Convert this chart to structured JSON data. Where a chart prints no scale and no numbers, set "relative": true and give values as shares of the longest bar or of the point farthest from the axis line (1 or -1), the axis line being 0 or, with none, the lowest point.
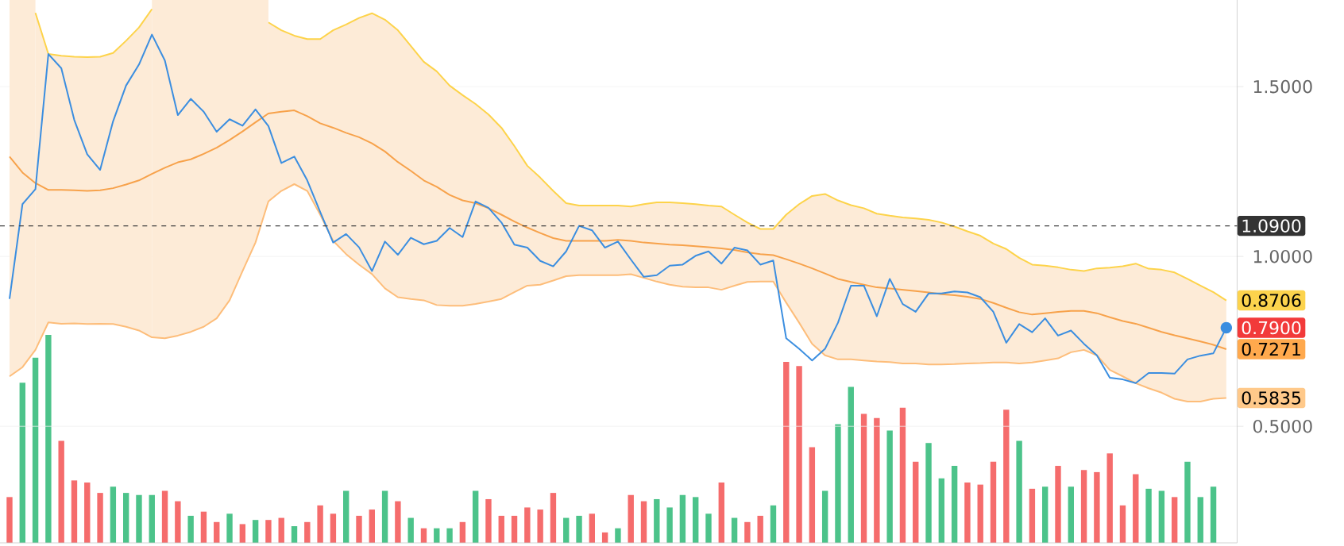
{
  "chart_data": [
    {
      "type": "line",
      "categories": [
        null,
        null,
        null,
        null,
        null,
        null,
        null,
        null,
        null,
        null,
        null,
        null,
        null,
        null,
        null,
        null,
        null,
        null,
        null,
        null,
        null,
        null,
        null,
        null,
        null,
        null,
        null,
        null,
        null,
        null,
        null,
        null,
        null,
        null,
        null,
        null,
        null,
        null,
        null,
        null,
        null,
        null,
        null,
        null,
        null,
        null,
        null,
        null,
        null,
        null,
        null,
        null,
        null,
        null,
        null,
        null,
        null,
        null,
        null,
        null,
        null,
        null,
        null,
        null,
        null,
        null,
        null,
        null,
        null,
        null,
        null,
        null,
        null,
        null,
        null,
        null,
        null,
        null,
        null,
        null,
        null,
        null,
        null,
        null,
        null,
        null,
        null,
        null,
        null,
        null,
        null,
        null,
        null,
        null,
        null
      ],
      "series": [
        {
          "color": "#fdd34a",
          "values": [
            null,
            null,
            1.717,
            1.596,
            1.591,
            1.588,
            1.587,
            1.588,
            1.599,
            1.635,
            1.674,
            1.728,
            null,
            null,
            null,
            null,
            null,
            null,
            null,
            null,
            1.689,
            1.666,
            1.65,
            1.64,
            1.64,
            1.666,
            1.683,
            1.702,
            1.716,
            1.697,
            1.666,
            1.62,
            1.573,
            1.545,
            1.503,
            1.475,
            1.449,
            1.418,
            1.379,
            1.325,
            1.267,
            1.232,
            1.193,
            1.157,
            1.15,
            1.15,
            1.15,
            1.15,
            1.147,
            1.154,
            1.159,
            1.159,
            1.157,
            1.154,
            1.15,
            1.147,
            1.123,
            1.1,
            1.081,
            1.081,
            1.123,
            1.154,
            1.178,
            1.184,
            1.165,
            1.151,
            1.142,
            1.126,
            1.12,
            1.115,
            1.112,
            1.108,
            1.1,
            1.088,
            1.074,
            1.061,
            1.038,
            1.022,
            0.996,
            0.976,
            0.973,
            0.968,
            0.961,
            0.957,
            0.965,
            0.967,
            0.971,
            0.979,
            0.964,
            0.961,
            0.953,
            0.934,
            0.914,
            0.895,
            0.8706
          ],
          "value_labels": [
            null,
            null,
            null,
            null,
            null,
            null,
            null,
            null,
            null,
            null,
            null,
            null,
            null,
            null,
            null,
            null,
            null,
            null,
            null,
            null,
            null,
            null,
            null,
            null,
            null,
            null,
            null,
            null,
            null,
            null,
            null,
            null,
            null,
            null,
            null,
            null,
            null,
            null,
            null,
            null,
            null,
            null,
            null,
            null,
            null,
            null,
            null,
            null,
            null,
            null,
            null,
            null,
            null,
            null,
            null,
            null,
            null,
            null,
            null,
            null,
            null,
            null,
            null,
            null,
            null,
            null,
            null,
            null,
            null,
            null,
            null,
            null,
            null,
            null,
            null,
            null,
            null,
            null,
            null,
            null,
            null,
            null,
            null,
            null,
            null,
            null,
            null,
            null,
            null,
            null,
            null,
            null,
            null,
            null,
            "0.8706"
          ]
        },
        {
          "color": "#f7a24b",
          "upper": [
            null,
            null,
            1.717,
            1.596,
            1.591,
            1.588,
            1.587,
            1.588,
            1.599,
            1.635,
            1.674,
            1.728,
            null,
            null,
            null,
            null,
            null,
            null,
            null,
            null,
            1.689,
            1.666,
            1.65,
            1.64,
            1.64,
            1.666,
            1.683,
            1.702,
            1.716,
            1.697,
            1.666,
            1.62,
            1.573,
            1.545,
            1.503,
            1.475,
            1.449,
            1.418,
            1.379,
            1.325,
            1.267,
            1.232,
            1.193,
            1.157,
            1.15,
            1.15,
            1.15,
            1.15,
            1.147,
            1.154,
            1.159,
            1.159,
            1.157,
            1.154,
            1.15,
            1.147,
            1.123,
            1.1,
            1.081,
            1.081,
            1.123,
            1.154,
            1.178,
            1.184,
            1.165,
            1.151,
            1.142,
            1.126,
            1.12,
            1.115,
            1.112,
            1.108,
            1.1,
            1.088,
            1.074,
            1.061,
            1.038,
            1.022,
            0.996,
            0.976,
            0.973,
            0.968,
            0.961,
            0.957,
            0.965,
            0.967,
            0.971,
            0.979,
            0.964,
            0.961,
            0.953,
            0.934,
            0.914,
            0.895,
            0.8706
          ],
          "lower": [
            null,
            null,
            0.725,
            0.806,
            0.802,
            0.803,
            0.801,
            0.802,
            0.801,
            0.793,
            0.782,
            0.762,
            null,
            null,
            null,
            null,
            null,
            null,
            null,
            null,
            1.162,
            1.193,
            1.213,
            1.193,
            1.123,
            1.046,
            1.007,
            0.976,
            0.948,
            0.906,
            0.88,
            0.875,
            0.871,
            0.857,
            0.855,
            0.855,
            0.86,
            0.867,
            0.875,
            0.895,
            0.914,
            0.917,
            0.929,
            0.942,
            0.945,
            0.945,
            0.945,
            0.945,
            0.948,
            0.937,
            0.926,
            0.917,
            0.911,
            0.909,
            0.909,
            0.902,
            0.914,
            0.925,
            0.926,
            0.926,
            0.864,
            0.805,
            0.743,
            0.709,
            0.697,
            0.697,
            0.694,
            0.691,
            0.689,
            0.685,
            0.685,
            0.682,
            0.682,
            0.683,
            0.685,
            0.686,
            0.688,
            0.688,
            0.685,
            0.688,
            0.694,
            0.7,
            0.718,
            0.725,
            0.709,
            0.666,
            0.647,
            0.627,
            0.612,
            0.599,
            0.581,
            0.573,
            0.573,
            0.581,
            0.5835
          ],
          "values": [
            1.294,
            1.247,
            1.216,
            1.196,
            1.196,
            1.195,
            1.193,
            1.195,
            1.201,
            1.212,
            1.224,
            1.243,
            1.261,
            1.277,
            1.286,
            1.302,
            1.32,
            1.343,
            1.368,
            1.395,
            1.421,
            1.426,
            1.43,
            1.413,
            1.392,
            1.379,
            1.364,
            1.351,
            1.333,
            1.309,
            1.278,
            1.252,
            1.224,
            1.205,
            1.181,
            1.165,
            1.157,
            1.142,
            1.123,
            1.103,
            1.085,
            1.069,
            1.054,
            1.046,
            1.046,
            1.046,
            1.046,
            1.049,
            1.046,
            1.041,
            1.038,
            1.035,
            1.033,
            1.03,
            1.027,
            1.024,
            1.019,
            1.012,
            1.007,
            1.004,
            0.992,
            0.979,
            0.965,
            0.95,
            0.934,
            0.925,
            0.917,
            0.909,
            0.906,
            0.902,
            0.898,
            0.894,
            0.889,
            0.886,
            0.881,
            0.875,
            0.863,
            0.849,
            0.836,
            0.829,
            0.833,
            0.837,
            0.84,
            0.84,
            0.833,
            0.821,
            0.81,
            0.802,
            0.79,
            0.778,
            0.768,
            0.759,
            0.75,
            0.74,
            0.7271
          ],
          "value_labels": [
            null,
            null,
            null,
            null,
            null,
            null,
            null,
            null,
            null,
            null,
            null,
            null,
            null,
            null,
            null,
            null,
            null,
            null,
            null,
            null,
            null,
            null,
            null,
            null,
            null,
            null,
            null,
            null,
            null,
            null,
            null,
            null,
            null,
            null,
            null,
            null,
            null,
            null,
            null,
            null,
            null,
            null,
            null,
            null,
            null,
            null,
            null,
            null,
            null,
            null,
            null,
            null,
            null,
            null,
            null,
            null,
            null,
            null,
            null,
            null,
            null,
            null,
            null,
            null,
            null,
            null,
            null,
            null,
            null,
            null,
            null,
            null,
            null,
            null,
            null,
            null,
            null,
            null,
            null,
            null,
            null,
            null,
            null,
            null,
            null,
            null,
            null,
            null,
            null,
            null,
            null,
            null,
            null,
            null,
            "0.7271"
          ]
        },
        {
          "color": "#fdbd7a",
          "values": [
            0.647,
            0.674,
            0.725,
            0.806,
            0.802,
            0.803,
            0.801,
            0.802,
            0.801,
            0.793,
            0.782,
            0.762,
            0.759,
            0.767,
            0.778,
            0.793,
            0.818,
            0.871,
            0.957,
            1.041,
            1.162,
            1.193,
            1.213,
            1.193,
            1.123,
            1.046,
            1.007,
            0.976,
            0.948,
            0.906,
            0.88,
            0.875,
            0.871,
            0.857,
            0.855,
            0.855,
            0.86,
            0.867,
            0.875,
            0.895,
            0.914,
            0.917,
            0.929,
            0.942,
            0.945,
            0.945,
            0.945,
            0.945,
            0.948,
            0.937,
            0.926,
            0.917,
            0.911,
            0.909,
            0.909,
            0.902,
            0.914,
            0.925,
            0.926,
            0.926,
            0.864,
            0.805,
            0.743,
            0.709,
            0.697,
            0.697,
            0.694,
            0.691,
            0.689,
            0.685,
            0.685,
            0.682,
            0.682,
            0.683,
            0.685,
            0.686,
            0.688,
            0.688,
            0.685,
            0.688,
            0.694,
            0.7,
            0.718,
            0.725,
            0.709,
            0.666,
            0.647,
            0.627,
            0.612,
            0.599,
            0.581,
            0.573,
            0.573,
            0.581,
            0.5835
          ],
          "value_labels": [
            null,
            null,
            null,
            null,
            null,
            null,
            null,
            null,
            null,
            null,
            null,
            null,
            null,
            null,
            null,
            null,
            null,
            null,
            null,
            null,
            null,
            null,
            null,
            null,
            null,
            null,
            null,
            null,
            null,
            null,
            null,
            null,
            null,
            null,
            null,
            null,
            null,
            null,
            null,
            null,
            null,
            null,
            null,
            null,
            null,
            null,
            null,
            null,
            null,
            null,
            null,
            null,
            null,
            null,
            null,
            null,
            null,
            null,
            null,
            null,
            null,
            null,
            null,
            null,
            null,
            null,
            null,
            null,
            null,
            null,
            null,
            null,
            null,
            null,
            null,
            null,
            null,
            null,
            null,
            null,
            null,
            null,
            null,
            null,
            null,
            null,
            null,
            null,
            null,
            null,
            null,
            null,
            null,
            null,
            "0.5835"
          ]
        },
        {
          "color": "#3b8ee0",
          "values": [
            0.875,
            1.154,
            1.198,
            1.596,
            1.554,
            1.402,
            1.301,
            1.255,
            1.398,
            1.503,
            1.565,
            1.653,
            1.577,
            1.416,
            1.464,
            1.426,
            1.367,
            1.404,
            1.385,
            1.433,
            1.384,
            1.275,
            1.294,
            1.224,
            1.131,
            1.041,
            1.066,
            1.027,
            0.957,
            1.044,
            1.005,
            1.055,
            1.036,
            1.046,
            1.084,
            1.057,
            1.162,
            1.143,
            1.1,
            1.035,
            1.026,
            0.987,
            0.971,
            1.015,
            1.09,
            1.077,
            1.026,
            1.044,
            0.991,
            0.94,
            0.945,
            0.973,
            0.976,
            1.002,
            1.015,
            0.979,
            1.026,
            1.018,
            0.976,
            0.988,
            0.759,
            0.728,
            0.694,
            0.728,
            0.805,
            0.914,
            0.914,
            0.824,
            0.934,
            0.86,
            0.837,
            0.891,
            0.891,
            0.897,
            0.894,
            0.88,
            0.837,
            0.746,
            0.801,
            0.777,
            0.818,
            0.767,
            0.782,
            0.743,
            0.709,
            0.643,
            0.638,
            0.627,
            0.657,
            0.657,
            0.655,
            0.697,
            0.708,
            0.715,
            0.79
          ],
          "value_labels": [
            null,
            null,
            null,
            null,
            null,
            null,
            null,
            null,
            null,
            null,
            null,
            null,
            null,
            null,
            null,
            null,
            null,
            null,
            null,
            null,
            null,
            null,
            null,
            null,
            null,
            null,
            null,
            null,
            null,
            null,
            null,
            null,
            null,
            null,
            null,
            null,
            null,
            null,
            null,
            null,
            null,
            null,
            null,
            null,
            null,
            null,
            null,
            null,
            null,
            null,
            null,
            null,
            null,
            null,
            null,
            null,
            null,
            null,
            null,
            null,
            null,
            null,
            null,
            null,
            null,
            null,
            null,
            null,
            null,
            null,
            null,
            null,
            null,
            null,
            null,
            null,
            null,
            null,
            null,
            null,
            null,
            null,
            null,
            null,
            null,
            null,
            null,
            null,
            null,
            null,
            null,
            null,
            null,
            null,
            "0.7900"
          ]
        }
      ],
      "ylim": [
        0.157,
        1.755
      ],
      "yticks": [
        {
          "value": 0.5,
          "label": "0.5000"
        },
        {
          "value": 1.0,
          "label": "1.0000"
        },
        {
          "value": 1.5,
          "label": "1.5000"
        }
      ],
      "grid": "y",
      "tick_labels": "y",
      "ref_lines": [
        {
          "axis": "y",
          "value": 1.09,
          "label": "1.0900",
          "line_style": "dashed"
        }
      ]
    },
    {
      "type": "bar",
      "relative": true,
      "tick_labels": false,
      "categories": [
        null,
        null,
        null,
        null,
        null,
        null,
        null,
        null,
        null,
        null,
        null,
        null,
        null,
        null,
        null,
        null,
        null,
        null,
        null,
        null,
        null,
        null,
        null,
        null,
        null,
        null,
        null,
        null,
        null,
        null,
        null,
        null,
        null,
        null,
        null,
        null,
        null,
        null,
        null,
        null,
        null,
        null,
        null,
        null,
        null,
        null,
        null,
        null,
        null,
        null,
        null,
        null,
        null,
        null,
        null,
        null,
        null,
        null,
        null,
        null,
        null,
        null,
        null,
        null,
        null,
        null,
        null,
        null,
        null,
        null,
        null,
        null,
        null,
        null,
        null,
        null,
        null,
        null,
        null,
        null,
        null,
        null,
        null,
        null,
        null,
        null,
        null,
        null,
        null,
        null,
        null,
        null,
        null,
        null,
        null
      ],
      "values": [
        0.22,
        0.77,
        0.89,
        1,
        0.49,
        0.3,
        0.29,
        0.24,
        0.27,
        0.24,
        0.23,
        0.23,
        0.25,
        0.2,
        0.13,
        0.15,
        0.1,
        0.14,
        0.09,
        0.11,
        0.11,
        0.12,
        0.08,
        0.1,
        0.18,
        0.14,
        0.25,
        0.13,
        0.16,
        0.25,
        0.2,
        0.12,
        0.07,
        0.07,
        0.07,
        0.1,
        0.25,
        0.21,
        0.13,
        0.13,
        0.17,
        0.16,
        0.24,
        0.12,
        0.13,
        0.14,
        0.05,
        0.07,
        0.23,
        0.2,
        0.21,
        0.17,
        0.23,
        0.22,
        0.14,
        0.29,
        0.12,
        0.1,
        0.13,
        0.18,
        0.87,
        0.85,
        0.46,
        0.25,
        0.57,
        0.75,
        0.62,
        0.6,
        0.54,
        0.65,
        0.39,
        0.48,
        0.31,
        0.37,
        0.29,
        0.28,
        0.39,
        0.64,
        0.49,
        0.26,
        0.27,
        0.37,
        0.27,
        0.35,
        0.34,
        0.43,
        0.18,
        0.33,
        0.26,
        0.25,
        0.22,
        0.39,
        0.22,
        0.27,
        null
      ],
      "colors": [
        "#f56c6c",
        "#4cc38a",
        "#4cc38a",
        "#4cc38a",
        "#f56c6c",
        "#f56c6c",
        "#f56c6c",
        "#f56c6c",
        "#4cc38a",
        "#4cc38a",
        "#4cc38a",
        "#4cc38a",
        "#f56c6c",
        "#f56c6c",
        "#4cc38a",
        "#f56c6c",
        "#f56c6c",
        "#4cc38a",
        "#f56c6c",
        "#4cc38a",
        "#f56c6c",
        "#f56c6c",
        "#4cc38a",
        "#f56c6c",
        "#f56c6c",
        "#f56c6c",
        "#4cc38a",
        "#f56c6c",
        "#f56c6c",
        "#4cc38a",
        "#f56c6c",
        "#4cc38a",
        "#f56c6c",
        "#4cc38a",
        "#4cc38a",
        "#f56c6c",
        "#4cc38a",
        "#f56c6c",
        "#f56c6c",
        "#f56c6c",
        "#f56c6c",
        "#f56c6c",
        "#f56c6c",
        "#4cc38a",
        "#4cc38a",
        "#f56c6c",
        "#f56c6c",
        "#4cc38a",
        "#f56c6c",
        "#f56c6c",
        "#4cc38a",
        "#4cc38a",
        "#4cc38a",
        "#4cc38a",
        "#4cc38a",
        "#f56c6c",
        "#4cc38a",
        "#f56c6c",
        "#f56c6c",
        "#4cc38a",
        "#f56c6c",
        "#f56c6c",
        "#f56c6c",
        "#4cc38a",
        "#4cc38a",
        "#4cc38a",
        "#f56c6c",
        "#f56c6c",
        "#4cc38a",
        "#f56c6c",
        "#f56c6c",
        "#4cc38a",
        "#4cc38a",
        "#4cc38a",
        "#f56c6c",
        "#f56c6c",
        "#f56c6c",
        "#f56c6c",
        "#4cc38a",
        "#f56c6c",
        "#4cc38a",
        "#f56c6c",
        "#4cc38a",
        "#f56c6c",
        "#f56c6c",
        "#f56c6c",
        "#f56c6c",
        "#f56c6c",
        "#4cc38a",
        "#4cc38a",
        "#f56c6c",
        "#4cc38a",
        "#4cc38a",
        "#4cc38a",
        "#f56c6c"
      ]
    }
  ]
}
